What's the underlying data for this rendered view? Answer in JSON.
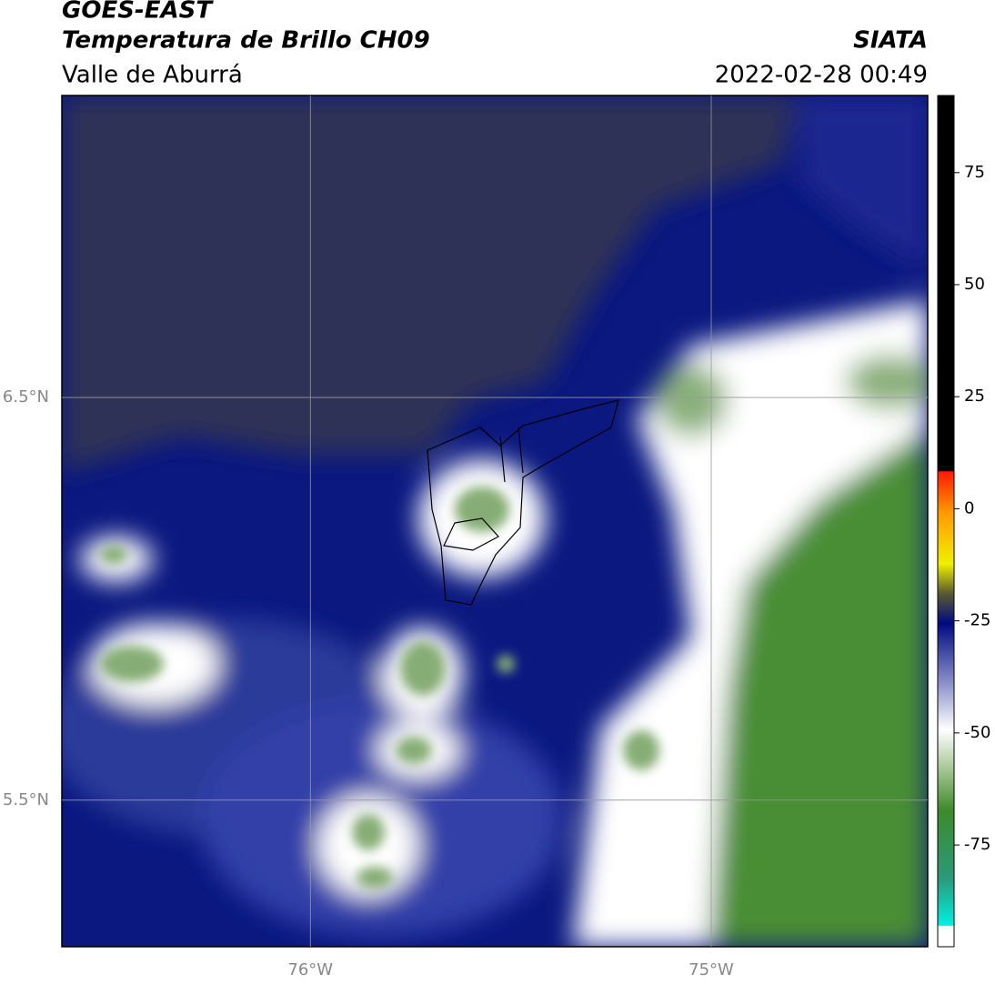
{
  "header": {
    "title": "GOES-EAST",
    "subtitle": "Temperatura de Brillo CH09",
    "region": "Valle de Aburrá",
    "source": "SIATA",
    "datetime": "2022-02-28 00:49"
  },
  "map": {
    "xlim": [
      -76.62,
      -74.46
    ],
    "ylim": [
      5.136,
      7.25
    ],
    "xticks": [
      {
        "value": -76,
        "label": "76°W"
      },
      {
        "value": -75,
        "label": "75°W"
      }
    ],
    "yticks": [
      {
        "value": 6.5,
        "label": "6.5°N"
      },
      {
        "value": 5.5,
        "label": "5.5°N"
      }
    ]
  },
  "colorbar": {
    "lim": [
      -97.7,
      92.2
    ],
    "ticks": [
      75,
      50,
      25,
      0,
      -25,
      -50,
      -75
    ]
  }
}
